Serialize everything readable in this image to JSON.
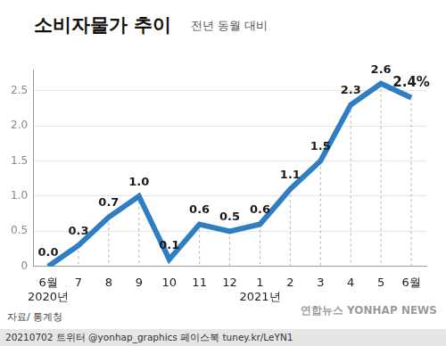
{
  "chart_data": {
    "type": "line",
    "title": "소비자물가 추이",
    "subtitle": "전년 동월 대비",
    "categories": [
      [
        "6월",
        "2020년"
      ],
      "7",
      "8",
      "9",
      "10",
      "11",
      "12",
      [
        "1",
        "2021년"
      ],
      "2",
      "3",
      "4",
      "5",
      "6월"
    ],
    "values": [
      0.0,
      0.3,
      0.7,
      1.0,
      0.1,
      0.6,
      0.5,
      0.6,
      1.1,
      1.5,
      2.3,
      2.6,
      2.4
    ],
    "value_labels": [
      "0.0",
      "0.3",
      "0.7",
      "1.0",
      "0.1",
      "0.6",
      "0.5",
      "0.6",
      "1.1",
      "1.5",
      "2.3",
      "2.6",
      "2.4%"
    ],
    "color": "#2f7dc3",
    "marker": "none",
    "ylim": [
      0,
      2.8
    ],
    "yticks": [
      0,
      0.5,
      {
        "value": 1,
        "label": "1.0"
      },
      1.5,
      {
        "value": 2,
        "label": "2.0"
      },
      2.5
    ],
    "grid": true,
    "data_labels": true,
    "annotations": {
      "source": "자료/ 통계청",
      "footer": "20210702  트위터 @yonhap_graphics  페이스북 tuney.kr/LeYN1",
      "watermark": "연합뉴스 YONHAP NEWS"
    }
  }
}
